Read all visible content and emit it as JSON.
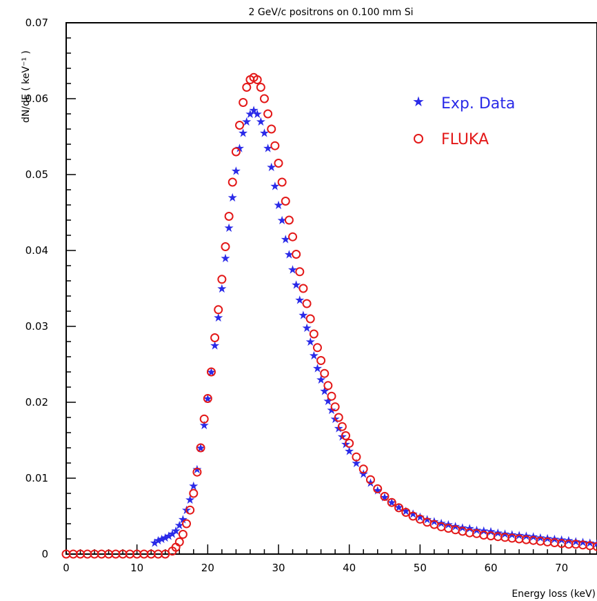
{
  "chart_data": {
    "type": "scatter",
    "title": "2 GeV/c positrons on 0.100 mm Si",
    "xlabel": "Energy loss (keV)",
    "ylabel": "dN/dE ( keV⁻¹ )",
    "xlim": [
      0,
      75
    ],
    "ylim": [
      0,
      0.07
    ],
    "xticks": [
      "0",
      "10",
      "20",
      "30",
      "40",
      "50",
      "60",
      "70"
    ],
    "yticks": [
      "0",
      "0.01",
      "0.02",
      "0.03",
      "0.04",
      "0.05",
      "0.06",
      "0.07"
    ],
    "legend_position": "top-right",
    "series": [
      {
        "name": "Exp. Data",
        "marker": "star",
        "color": "#2a2ae8",
        "x": [
          12.5,
          13.0,
          13.5,
          14.0,
          14.5,
          15.0,
          15.5,
          16.0,
          16.5,
          17.0,
          17.5,
          18.0,
          18.5,
          19.0,
          19.5,
          20.0,
          20.5,
          21.0,
          21.5,
          22.0,
          22.5,
          23.0,
          23.5,
          24.0,
          24.5,
          25.0,
          25.5,
          26.0,
          26.5,
          27.0,
          27.5,
          28.0,
          28.5,
          29.0,
          29.5,
          30.0,
          30.5,
          31.0,
          31.5,
          32.0,
          32.5,
          33.0,
          33.5,
          34.0,
          34.5,
          35.0,
          35.5,
          36.0,
          36.5,
          37.0,
          37.5,
          38.0,
          38.5,
          39.0,
          39.5,
          40.0,
          41.0,
          42.0,
          43.0,
          44.0,
          45.0,
          46.0,
          47.0,
          48.0,
          49.0,
          50.0,
          51.0,
          52.0,
          53.0,
          54.0,
          55.0,
          56.0,
          57.0,
          58.0,
          59.0,
          60.0,
          61.0,
          62.0,
          63.0,
          64.0,
          65.0,
          66.0,
          67.0,
          68.0,
          69.0,
          70.0,
          71.0,
          72.0,
          73.0,
          74.0,
          75.0
        ],
        "y": [
          0.0015,
          0.0018,
          0.002,
          0.0022,
          0.0024,
          0.0027,
          0.0031,
          0.0038,
          0.0046,
          0.0058,
          0.0072,
          0.009,
          0.0112,
          0.014,
          0.017,
          0.0205,
          0.024,
          0.0275,
          0.0312,
          0.035,
          0.039,
          0.043,
          0.047,
          0.0505,
          0.0535,
          0.0555,
          0.057,
          0.058,
          0.0585,
          0.058,
          0.057,
          0.0555,
          0.0535,
          0.051,
          0.0485,
          0.046,
          0.044,
          0.0415,
          0.0395,
          0.0375,
          0.0355,
          0.0335,
          0.0315,
          0.0298,
          0.028,
          0.0262,
          0.0245,
          0.023,
          0.0215,
          0.0202,
          0.019,
          0.0178,
          0.0166,
          0.0155,
          0.0145,
          0.0136,
          0.012,
          0.0106,
          0.0094,
          0.0084,
          0.0075,
          0.0068,
          0.0062,
          0.0057,
          0.0053,
          0.0049,
          0.0046,
          0.0043,
          0.0041,
          0.0039,
          0.0037,
          0.0035,
          0.0034,
          0.0032,
          0.0031,
          0.003,
          0.0028,
          0.0027,
          0.0026,
          0.0025,
          0.0024,
          0.0023,
          0.0022,
          0.0021,
          0.002,
          0.0019,
          0.0018,
          0.0017,
          0.0016,
          0.0015,
          0.0014
        ]
      },
      {
        "name": "FLUKA",
        "marker": "circle",
        "color": "#e31818",
        "x": [
          0,
          1,
          2,
          3,
          4,
          5,
          6,
          7,
          8,
          9,
          10,
          11,
          12,
          13,
          14,
          15,
          15.5,
          16.0,
          16.5,
          17.0,
          17.5,
          18.0,
          18.5,
          19.0,
          19.5,
          20.0,
          20.5,
          21.0,
          21.5,
          22.0,
          22.5,
          23.0,
          23.5,
          24.0,
          24.5,
          25.0,
          25.5,
          26.0,
          26.5,
          27.0,
          27.5,
          28.0,
          28.5,
          29.0,
          29.5,
          30.0,
          30.5,
          31.0,
          31.5,
          32.0,
          32.5,
          33.0,
          33.5,
          34.0,
          34.5,
          35.0,
          35.5,
          36.0,
          36.5,
          37.0,
          37.5,
          38.0,
          38.5,
          39.0,
          39.5,
          40.0,
          41.0,
          42.0,
          43.0,
          44.0,
          45.0,
          46.0,
          47.0,
          48.0,
          49.0,
          50.0,
          51.0,
          52.0,
          53.0,
          54.0,
          55.0,
          56.0,
          57.0,
          58.0,
          59.0,
          60.0,
          61.0,
          62.0,
          63.0,
          64.0,
          65.0,
          66.0,
          67.0,
          68.0,
          69.0,
          70.0,
          71.0,
          72.0,
          73.0,
          74.0,
          75.0
        ],
        "y": [
          0,
          0,
          0,
          0,
          0,
          0,
          0,
          0,
          0,
          0,
          0,
          0,
          0,
          0,
          0,
          0.0004,
          0.0009,
          0.0016,
          0.0026,
          0.004,
          0.0058,
          0.008,
          0.0108,
          0.014,
          0.0178,
          0.0205,
          0.024,
          0.0285,
          0.0322,
          0.0362,
          0.0405,
          0.0445,
          0.049,
          0.053,
          0.0565,
          0.0595,
          0.0615,
          0.0625,
          0.0628,
          0.0625,
          0.0615,
          0.06,
          0.058,
          0.056,
          0.0538,
          0.0515,
          0.049,
          0.0465,
          0.044,
          0.0418,
          0.0395,
          0.0372,
          0.035,
          0.033,
          0.031,
          0.029,
          0.0272,
          0.0255,
          0.0238,
          0.0222,
          0.0208,
          0.0194,
          0.018,
          0.0168,
          0.0156,
          0.0146,
          0.0128,
          0.0112,
          0.0098,
          0.0086,
          0.0076,
          0.0068,
          0.0061,
          0.0055,
          0.005,
          0.0046,
          0.0042,
          0.0039,
          0.0036,
          0.0034,
          0.0032,
          0.003,
          0.0028,
          0.0027,
          0.0025,
          0.0024,
          0.0023,
          0.0022,
          0.0021,
          0.002,
          0.0019,
          0.0018,
          0.0017,
          0.0016,
          0.0015,
          0.0014,
          0.0013,
          0.0013,
          0.0012,
          0.0011,
          0.001
        ]
      }
    ]
  }
}
